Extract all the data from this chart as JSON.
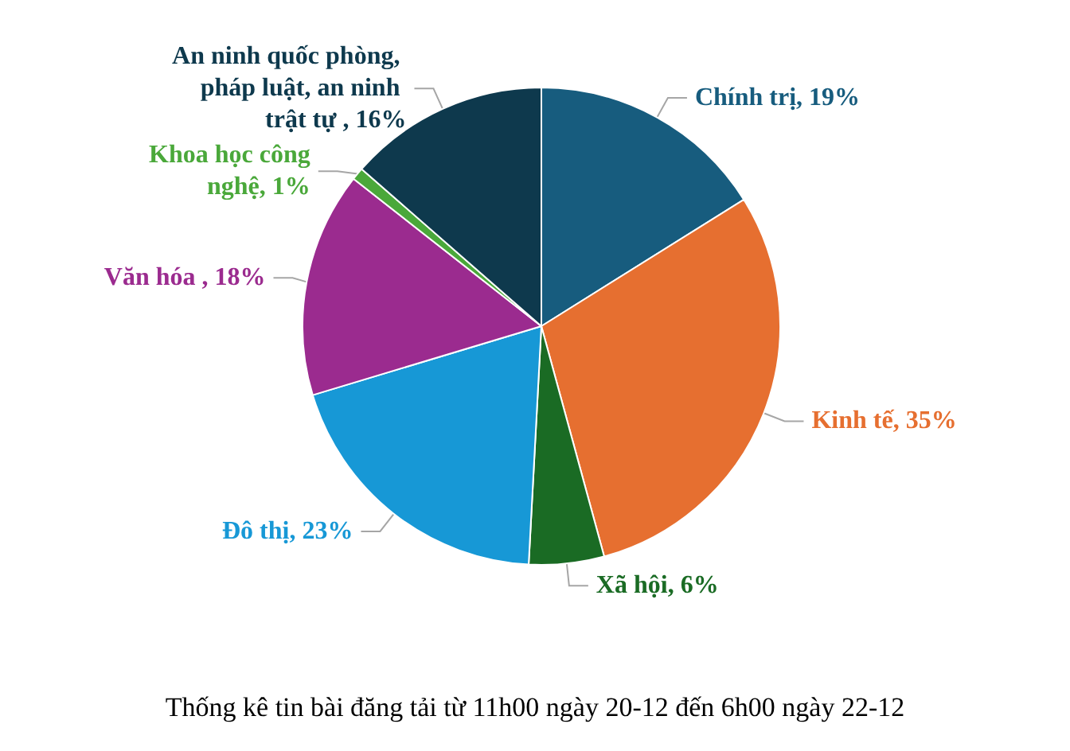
{
  "chart_data": {
    "type": "pie",
    "title": "Thống kê tin bài đăng tải từ 11h00 ngày 20-12 đến 6h00 ngày 22-12",
    "categories": [
      "Chính trị",
      "Kinh tế",
      "Xã hội",
      "Đô thị",
      "Văn hóa ",
      "Khoa học công nghệ",
      "An ninh quốc phòng, pháp luật, an ninh trật tự "
    ],
    "values": [
      19,
      35,
      6,
      23,
      18,
      1,
      16
    ],
    "value_labels": [
      "19%",
      "35%",
      "6%",
      "23%",
      "18%",
      "1%",
      "16%"
    ],
    "colors": [
      "#175c7e",
      "#e66f30",
      "#1a6b24",
      "#1798d6",
      "#9b2b8f",
      "#4aa83a",
      "#0e394d"
    ],
    "legend": false
  }
}
